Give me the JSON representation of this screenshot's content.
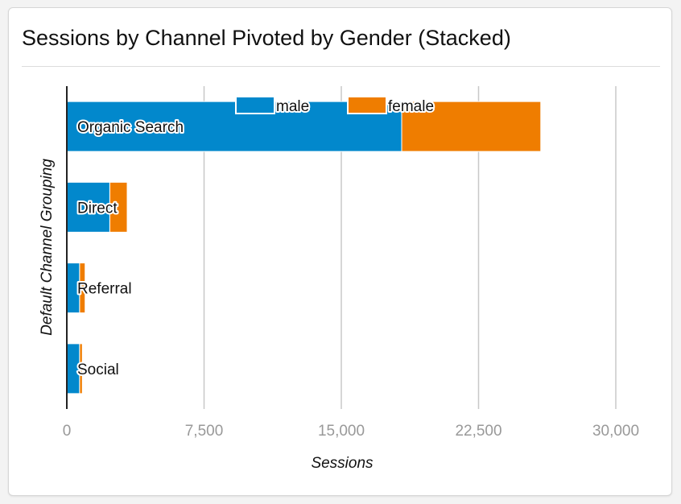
{
  "title": "Sessions by Channel Pivoted by Gender (Stacked)",
  "colors": {
    "male": "#0288cc",
    "female": "#ef7d00",
    "grid": "#c8c8c8",
    "axis": "#222222",
    "tick": "#999999"
  },
  "chart_data": {
    "type": "bar",
    "orientation": "horizontal",
    "stacked": true,
    "title": "Sessions by Channel Pivoted by Gender (Stacked)",
    "xlabel": "Sessions",
    "ylabel": "Default Channel Grouping",
    "categories": [
      "Organic Search",
      "Direct",
      "Referral",
      "Social"
    ],
    "series": [
      {
        "name": "male",
        "values": [
          18300,
          2350,
          700,
          700
        ]
      },
      {
        "name": "female",
        "values": [
          7600,
          950,
          300,
          150
        ]
      }
    ],
    "xlim": [
      0,
      30000
    ],
    "xticks": [
      0,
      7500,
      15000,
      22500,
      30000
    ],
    "xtick_labels": [
      "0",
      "7,500",
      "15,000",
      "22,500",
      "30,000"
    ],
    "grid": true,
    "legend": "top-center"
  }
}
